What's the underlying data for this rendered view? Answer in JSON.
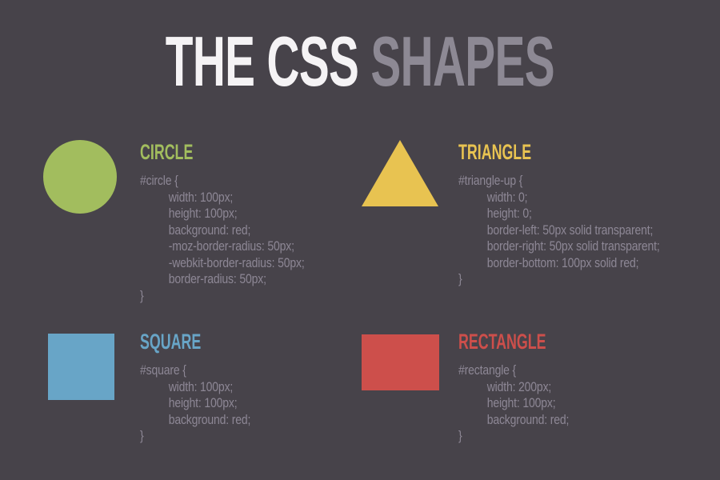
{
  "title": {
    "white_part": "THE CSS",
    "gray_part": "SHAPES"
  },
  "colors": {
    "background": "#47434a",
    "title_white": "#f5f3f5",
    "title_gray": "#8d8994",
    "green": "#a2bd5e",
    "yellow": "#e8c351",
    "blue": "#68a5c7",
    "red": "#cd4f4b",
    "code_text": "#8d8795"
  },
  "sections": [
    {
      "label": "CIRCLE",
      "shape": "circle",
      "color": "#a2bd5e",
      "code": [
        "#circle {",
        "width: 100px;",
        "height: 100px;",
        "background: red;",
        "-moz-border-radius: 50px;",
        "-webkit-border-radius: 50px;",
        "border-radius: 50px;",
        "}"
      ]
    },
    {
      "label": "TRIANGLE",
      "shape": "triangle",
      "color": "#e8c351",
      "code": [
        "#triangle-up {",
        "width: 0;",
        "height: 0;",
        "border-left: 50px solid transparent;",
        "border-right: 50px solid transparent;",
        "border-bottom: 100px solid red;",
        "}"
      ]
    },
    {
      "label": "SQUARE",
      "shape": "square",
      "color": "#68a5c7",
      "code": [
        "#square {",
        "width: 100px;",
        "height: 100px;",
        "background: red;",
        "}"
      ]
    },
    {
      "label": "RECTANGLE",
      "shape": "rectangle",
      "color": "#cd4f4b",
      "code": [
        "#rectangle {",
        "width: 200px;",
        "height: 100px;",
        "background: red;",
        "}"
      ]
    }
  ]
}
